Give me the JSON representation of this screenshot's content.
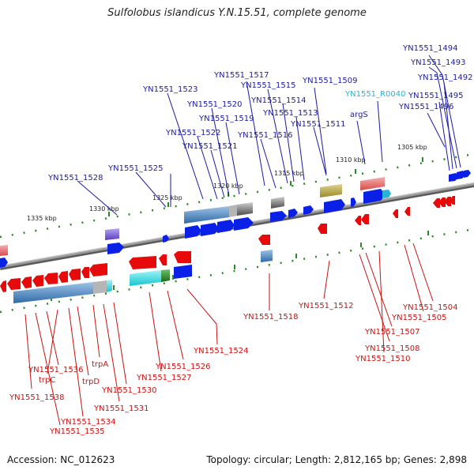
{
  "title": "Sulfolobus islandicus Y.N.15.51, complete genome",
  "accession": "Accession: NC_012623",
  "topology": "Topology: circular; Length: 2,812,165 bp; Genes: 2,898",
  "colors": {
    "top_label": "#1a1aa6",
    "top_label_rna": "#29b3d6",
    "bottom_label": "#cc1111",
    "forward_gene": "#0a20e6",
    "reverse_gene": "#e60a0a",
    "backbone": "#8c8c8c",
    "tick_dot": "#2a8a2a"
  },
  "scale_labels": [
    "1305 kbp",
    "1310 kbp",
    "1315 kbp",
    "1320 kbp",
    "1325 kbp",
    "1330 kbp",
    "1335 kbp"
  ],
  "top_labels": [
    "YN1551_1494",
    "YN1551_1493",
    "YN1551_1492",
    "YN1551_1495",
    "YN1551_1496",
    "YN1551_1509",
    "YN1551_R0040",
    "argS",
    "YN1551_1517",
    "YN1551_1515",
    "YN1551_1514",
    "YN1551_1513",
    "YN1551_1511",
    "YN1551_1523",
    "YN1551_1520",
    "YN1551_1519",
    "YN1551_1522",
    "YN1551_1521",
    "YN1551_1516",
    "YN1551_1525",
    "YN1551_1528"
  ],
  "bottom_labels": [
    "YN1551_1512",
    "YN1551_1504",
    "YN1551_1505",
    "YN1551_1507",
    "YN1551_1508",
    "YN1551_1510",
    "YN1551_1518",
    "YN1551_1524",
    "YN1551_1526",
    "YN1551_1527",
    "trpA",
    "trpD",
    "trpC",
    "YN1551_1536",
    "YN1551_1538",
    "YN1551_1530",
    "YN1551_1531",
    "YN1551_1534",
    "YN1551_1535"
  ]
}
